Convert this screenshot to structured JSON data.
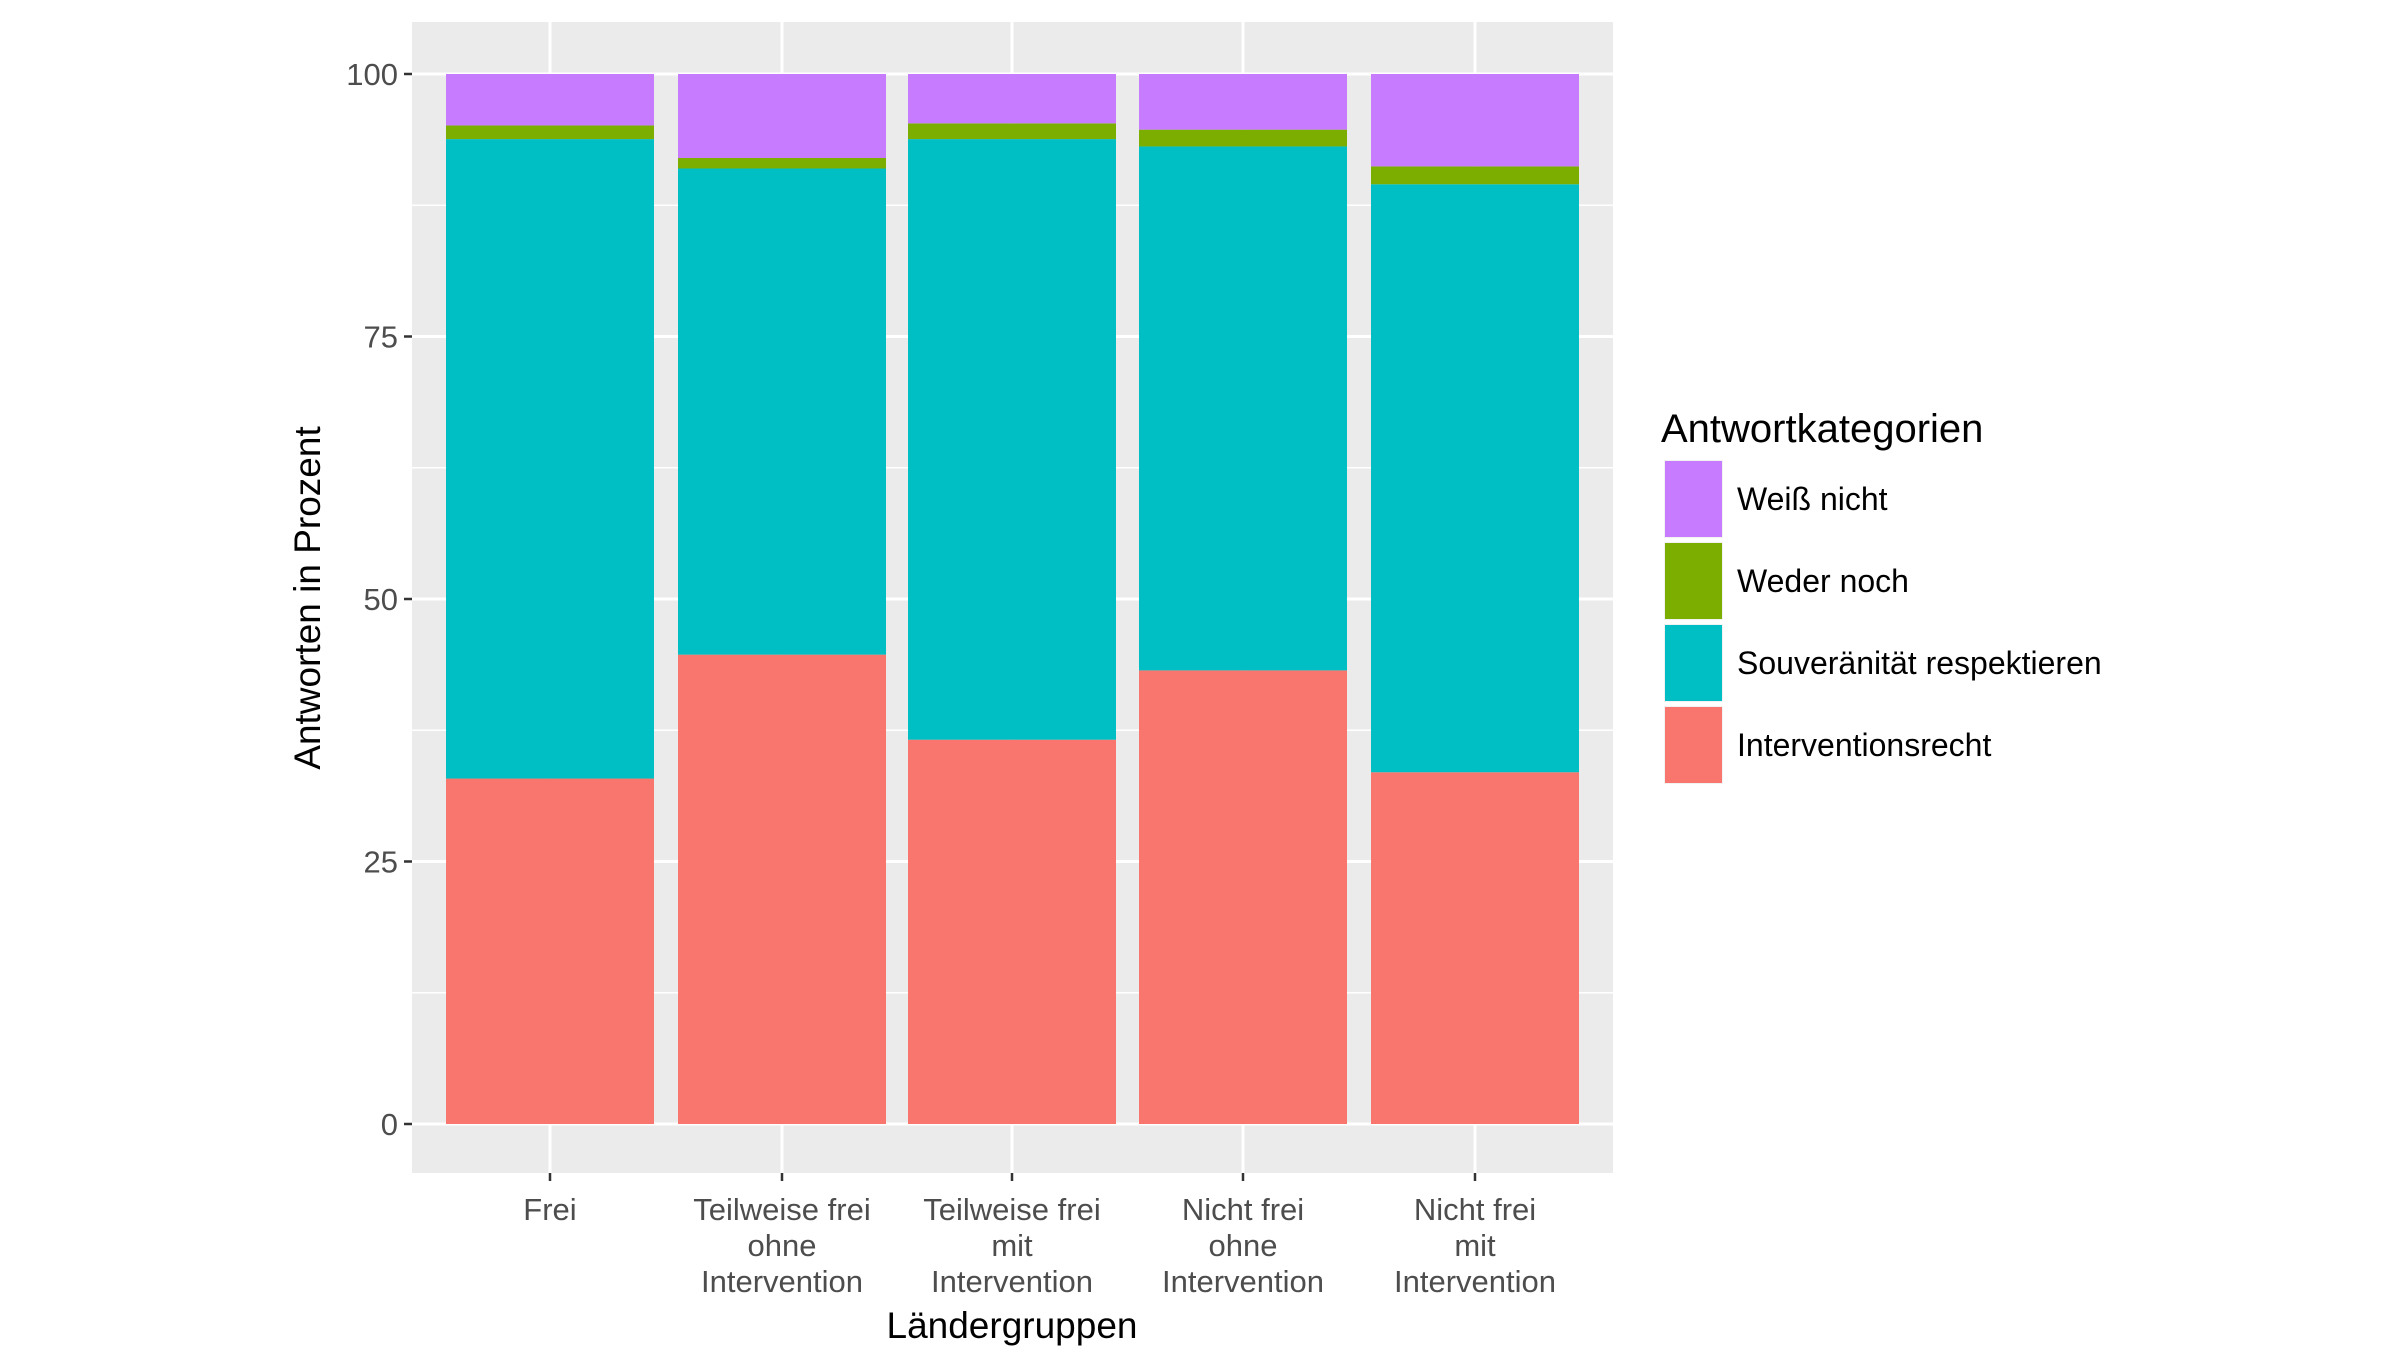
{
  "chart_data": {
    "type": "bar",
    "stacked": true,
    "xlabel": "Ländergruppen",
    "ylabel": "Antworten in Prozent",
    "ylim": [
      0,
      100
    ],
    "yticks": [
      "0",
      "25",
      "50",
      "75",
      "100"
    ],
    "grid": true,
    "categories": [
      [
        "Frei"
      ],
      [
        "Teilweise frei",
        "ohne",
        "Intervention"
      ],
      [
        "Teilweise frei",
        "mit",
        "Intervention"
      ],
      [
        "Nicht frei",
        "ohne",
        "Intervention"
      ],
      [
        "Nicht frei",
        "mit",
        "Intervention"
      ]
    ],
    "legend": {
      "title": "Antwortkategorien",
      "position": "right",
      "items": [
        "Weiß nicht",
        "Weder noch",
        "Souveränität respektieren",
        "Interventionsrecht"
      ]
    },
    "series": [
      {
        "name": "Interventionsrecht",
        "color": "#F8766D",
        "values": [
          32.9,
          44.7,
          36.6,
          43.2,
          33.5
        ]
      },
      {
        "name": "Souveränität respektieren",
        "color": "#00BFC4",
        "values": [
          60.9,
          46.3,
          57.2,
          49.9,
          56.0
        ]
      },
      {
        "name": "Weder noch",
        "color": "#7CAE00",
        "values": [
          1.3,
          1.0,
          1.5,
          1.6,
          1.7
        ]
      },
      {
        "name": "Weiß nicht",
        "color": "#C77CFF",
        "values": [
          4.9,
          8.0,
          4.7,
          5.3,
          8.8
        ]
      }
    ]
  }
}
